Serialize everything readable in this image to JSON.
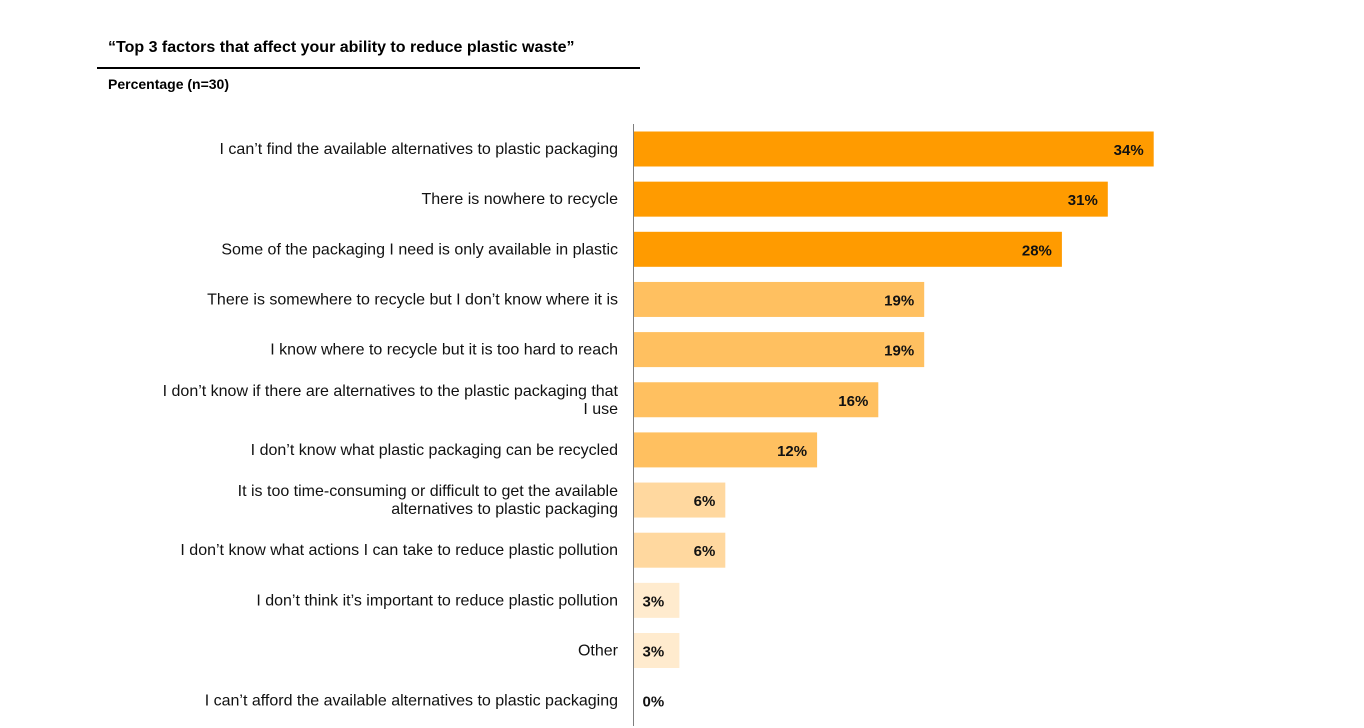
{
  "chart_data": {
    "type": "bar",
    "orientation": "horizontal",
    "title": "“Top 3 factors that affect your ability to reduce plastic waste”",
    "subtitle": "Percentage (n=30)",
    "value_suffix": "%",
    "xlim": [
      0,
      40
    ],
    "grid": false,
    "legend": "none",
    "categories": [
      [
        "I can’t find the available alternatives to plastic packaging"
      ],
      [
        "There is nowhere to recycle"
      ],
      [
        "Some of the packaging I need is only available in plastic"
      ],
      [
        "There is somewhere to recycle but I don’t know where it is"
      ],
      [
        "I know where to recycle but it is too hard to reach"
      ],
      [
        "I don’t know if there are alternatives to the plastic packaging that",
        "I use"
      ],
      [
        "I don’t know what plastic packaging can be recycled"
      ],
      [
        "It is too time-consuming or difficult to get the available",
        "alternatives to plastic packaging"
      ],
      [
        "I don’t know what actions I can take to reduce plastic pollution"
      ],
      [
        "I don’t think it’s important to reduce plastic pollution"
      ],
      [
        "Other"
      ],
      [
        "I can’t afford the available alternatives to plastic packaging"
      ]
    ],
    "values": [
      34,
      31,
      28,
      19,
      19,
      16,
      12,
      6,
      6,
      3,
      3,
      0
    ],
    "bar_colors": [
      "#FF9B00",
      "#FF9B00",
      "#FF9B00",
      "#FFC060",
      "#FFC060",
      "#FFC060",
      "#FFC060",
      "#FFD89F",
      "#FFD89F",
      "#FFEBCE",
      "#FFEBCE",
      "#FFEBCE"
    ],
    "axis_color": "#7F7F7F"
  }
}
